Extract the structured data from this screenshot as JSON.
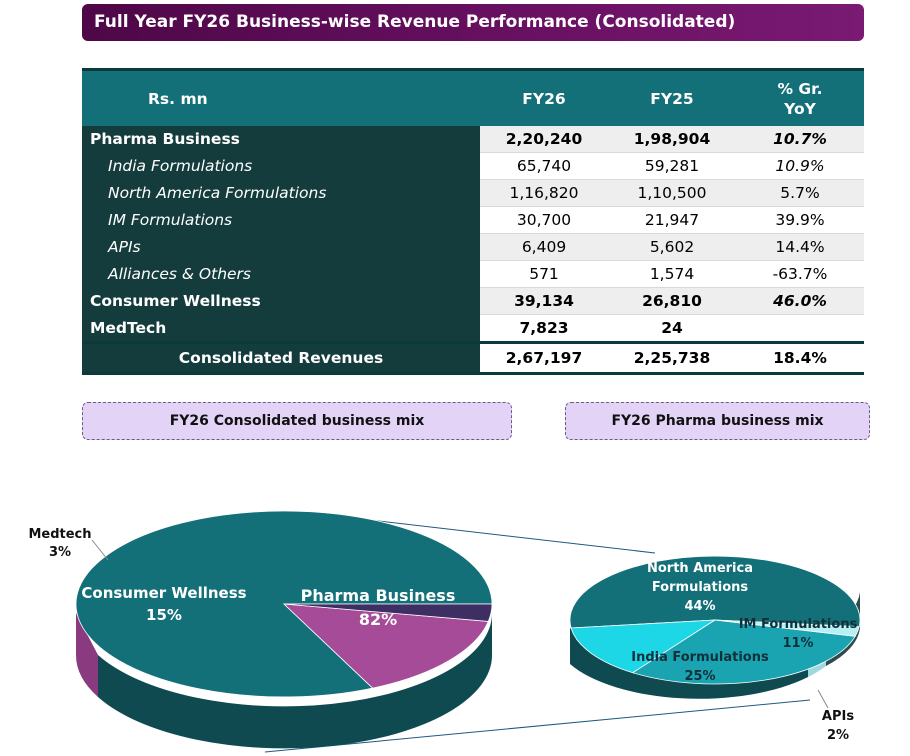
{
  "title": "Full Year FY26 Business-wise Revenue Performance (Consolidated)",
  "table": {
    "headers": [
      "Rs. mn",
      "FY26",
      "FY25",
      "% Gr. YoY"
    ],
    "rows": [
      {
        "label": "Pharma Business",
        "fy26": "2,20,240",
        "fy25": "1,98,904",
        "growth": "10.7%"
      },
      {
        "label": "India Formulations",
        "fy26": "65,740",
        "fy25": "59,281",
        "growth": "10.9%"
      },
      {
        "label": "North America Formulations",
        "fy26": "1,16,820",
        "fy25": "1,10,500",
        "growth": "5.7%"
      },
      {
        "label": "IM Formulations",
        "fy26": "30,700",
        "fy25": "21,947",
        "growth": "39.9%"
      },
      {
        "label": "APIs",
        "fy26": "6,409",
        "fy25": "5,602",
        "growth": "14.4%"
      },
      {
        "label": "Alliances & Others",
        "fy26": "571",
        "fy25": "1,574",
        "growth": "-63.7%"
      },
      {
        "label": "Consumer Wellness",
        "fy26": "39,134",
        "fy25": "26,810",
        "growth": "46.0%"
      },
      {
        "label": "MedTech",
        "fy26": "7,823",
        "fy25": "24",
        "growth": ""
      }
    ],
    "total": {
      "label": "Consolidated Revenues",
      "fy26": "2,67,197",
      "fy25": "2,25,738",
      "growth": "18.4%"
    }
  },
  "mix_titles": {
    "consolidated": "FY26 Consolidated business mix",
    "pharma": "FY26 Pharma business mix"
  },
  "chart_data": [
    {
      "type": "pie",
      "title": "FY26 Consolidated business mix",
      "categories": [
        "Pharma Business",
        "Consumer Wellness",
        "Medtech"
      ],
      "values": [
        82,
        15,
        3
      ],
      "colors": [
        "#137078",
        "#a64b97",
        "#3d2f63"
      ],
      "labels": {
        "pharma_name": "Pharma Business",
        "pharma_pct": "82%",
        "cw_name": "Consumer Wellness",
        "cw_pct": "15%",
        "med_name": "Medtech",
        "med_pct": "3%"
      }
    },
    {
      "type": "pie",
      "title": "FY26 Pharma business mix",
      "categories": [
        "North America Formulations",
        "IM Formulations",
        "India Formulations",
        "APIs"
      ],
      "values": [
        44,
        11,
        25,
        2
      ],
      "colors": [
        "#137078",
        "#1ed7e6",
        "#1aa3b0",
        "#b6f0f4"
      ],
      "labels": {
        "na_name1": "North America",
        "na_name2": "Formulations",
        "na_pct": "44%",
        "im_name": "IM Formulations",
        "im_pct": "11%",
        "india_name": "India Formulations",
        "india_pct": "25%",
        "api_name": "APIs",
        "api_pct": "2%"
      }
    }
  ]
}
